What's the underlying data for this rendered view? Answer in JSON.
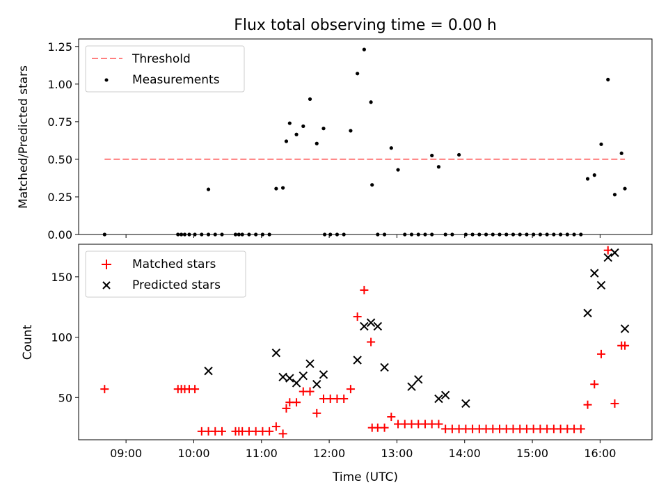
{
  "title": "Flux total observing time = 0.00 h",
  "colors": {
    "threshold": "#ff7f7f",
    "measurements": "#000000",
    "matched": "#ff0000",
    "predicted": "#000000"
  },
  "chart_data": [
    {
      "type": "scatter",
      "ylabel": "Matched/Predicted stars",
      "ylim": [
        0,
        1.3
      ],
      "yticks": [
        0,
        0.25,
        0.5,
        0.75,
        1.0,
        1.25
      ],
      "ytick_labels": [
        "0.00",
        "0.25",
        "0.50",
        "0.75",
        "1.00",
        "1.25"
      ],
      "xlim": [
        "08:18",
        "16:46"
      ],
      "xtick_labels": [
        "09:00",
        "10:00",
        "11:00",
        "12:00",
        "13:00",
        "14:00",
        "15:00",
        "16:00"
      ],
      "xtick_labels_visible": false,
      "legend": "top-left",
      "series": [
        {
          "name": "Threshold",
          "style": "dashed-line",
          "x": [
            "08:41",
            "16:22"
          ],
          "y": [
            0.5,
            0.5
          ]
        },
        {
          "name": "Measurements",
          "style": "dot",
          "x": [
            "08:41",
            "09:46",
            "09:49",
            "09:52",
            "09:56",
            "10:01",
            "10:07",
            "10:13",
            "10:13",
            "10:19",
            "10:25",
            "10:37",
            "10:40",
            "10:43",
            "10:49",
            "10:55",
            "11:01",
            "11:07",
            "11:13",
            "11:19",
            "11:22",
            "11:25",
            "11:31",
            "11:37",
            "11:43",
            "11:49",
            "11:55",
            "11:56",
            "12:01",
            "12:07",
            "12:13",
            "12:19",
            "12:25",
            "12:31",
            "12:37",
            "12:38",
            "12:43",
            "12:49",
            "12:55",
            "13:01",
            "13:07",
            "13:13",
            "13:19",
            "13:25",
            "13:31",
            "13:31",
            "13:37",
            "13:43",
            "13:49",
            "13:55",
            "14:01",
            "14:07",
            "14:13",
            "14:19",
            "14:25",
            "14:31",
            "14:37",
            "14:43",
            "14:49",
            "14:55",
            "15:01",
            "15:07",
            "15:13",
            "15:19",
            "15:25",
            "15:31",
            "15:37",
            "15:43",
            "15:49",
            "15:55",
            "16:01",
            "16:07",
            "16:13",
            "16:19",
            "16:22"
          ],
          "y": [
            0,
            0,
            0,
            0,
            0,
            0,
            0,
            0.3,
            0,
            0,
            0,
            0,
            0,
            0,
            0,
            0,
            0,
            0,
            0.305,
            0.31,
            0.62,
            0.74,
            0.665,
            0.72,
            0.9,
            0.605,
            0.705,
            0,
            0,
            0,
            0,
            0.69,
            1.07,
            1.23,
            0.88,
            0.33,
            0,
            0,
            0.575,
            0.43,
            0,
            0,
            0,
            0,
            0,
            0.525,
            0.45,
            0,
            0,
            0.53,
            0,
            0,
            0,
            0,
            0,
            0,
            0,
            0,
            0,
            0,
            0,
            0,
            0,
            0,
            0,
            0,
            0,
            0,
            0.37,
            0.395,
            0.6,
            1.03,
            0.265,
            0.54,
            0.305
          ]
        }
      ]
    },
    {
      "type": "scatter",
      "xlabel": "Time (UTC)",
      "ylabel": "Count",
      "ylim": [
        15,
        177
      ],
      "yticks": [
        50,
        100,
        150
      ],
      "ytick_labels": [
        "50",
        "100",
        "150"
      ],
      "xlim": [
        "08:18",
        "16:46"
      ],
      "xtick_labels": [
        "09:00",
        "10:00",
        "11:00",
        "12:00",
        "13:00",
        "14:00",
        "15:00",
        "16:00"
      ],
      "legend": "top-left",
      "series": [
        {
          "name": "Matched stars",
          "marker": "plus",
          "x": [
            "08:41",
            "09:46",
            "09:49",
            "09:52",
            "09:56",
            "10:01",
            "10:07",
            "10:13",
            "10:19",
            "10:25",
            "10:37",
            "10:40",
            "10:43",
            "10:49",
            "10:55",
            "11:01",
            "11:07",
            "11:13",
            "11:19",
            "11:22",
            "11:25",
            "11:31",
            "11:37",
            "11:43",
            "11:49",
            "11:55",
            "12:01",
            "12:07",
            "12:13",
            "12:19",
            "12:25",
            "12:31",
            "12:37",
            "12:38",
            "12:43",
            "12:49",
            "12:55",
            "13:01",
            "13:07",
            "13:13",
            "13:19",
            "13:25",
            "13:31",
            "13:37",
            "13:43",
            "13:49",
            "13:55",
            "14:01",
            "14:07",
            "14:13",
            "14:19",
            "14:25",
            "14:31",
            "14:37",
            "14:43",
            "14:49",
            "14:55",
            "15:01",
            "15:07",
            "15:13",
            "15:19",
            "15:25",
            "15:31",
            "15:37",
            "15:43",
            "15:49",
            "15:55",
            "16:01",
            "16:07",
            "16:13",
            "16:19",
            "16:22"
          ],
          "y": [
            57,
            57,
            57,
            57,
            57,
            57,
            22,
            22,
            22,
            22,
            22,
            22,
            22,
            22,
            22,
            22,
            22,
            26,
            20,
            41,
            46,
            46,
            55,
            55,
            37,
            49,
            49,
            49,
            49,
            57,
            117,
            139,
            96,
            25,
            25,
            25,
            34,
            28,
            28,
            28,
            28,
            28,
            28,
            28,
            24,
            24,
            24,
            24,
            24,
            24,
            24,
            24,
            24,
            24,
            24,
            24,
            24,
            24,
            24,
            24,
            24,
            24,
            24,
            24,
            24,
            44,
            61,
            86,
            172,
            45,
            93,
            93
          ]
        },
        {
          "name": "Predicted stars",
          "marker": "x",
          "x": [
            "10:13",
            "11:13",
            "11:19",
            "11:25",
            "11:31",
            "11:37",
            "11:43",
            "11:49",
            "11:55",
            "12:25",
            "12:31",
            "12:37",
            "12:43",
            "12:49",
            "13:13",
            "13:19",
            "13:37",
            "13:43",
            "14:01",
            "15:49",
            "15:55",
            "16:01",
            "16:07",
            "16:13",
            "16:22"
          ],
          "y": [
            72,
            87,
            67,
            66,
            62,
            68,
            78,
            61,
            69,
            81,
            109,
            112,
            109,
            75,
            59,
            65,
            49,
            52,
            45,
            120,
            153,
            143,
            166,
            170,
            107
          ]
        }
      ]
    }
  ]
}
